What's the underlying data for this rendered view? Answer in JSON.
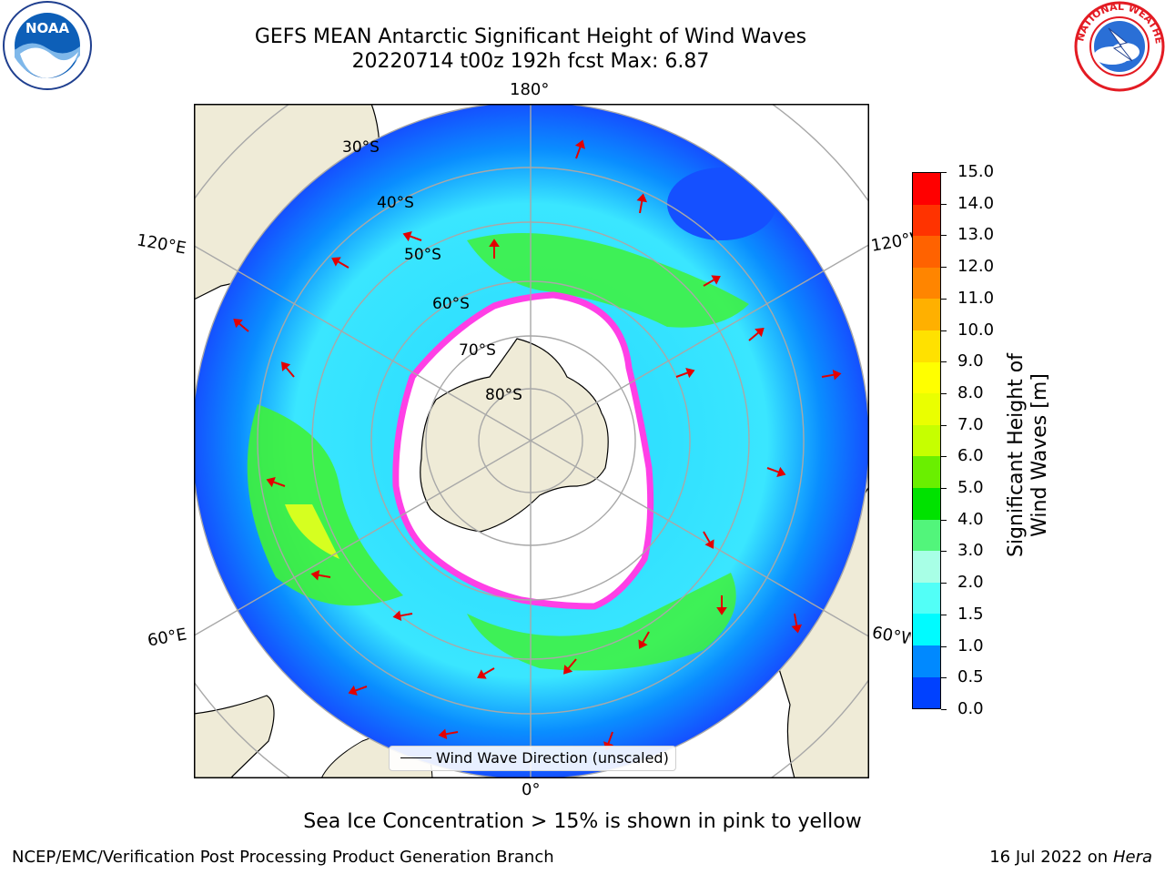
{
  "title": {
    "line1": "GEFS MEAN Antarctic Significant Height of Wind Waves",
    "line2": "20220714 t00z 192h fcst   Max: 6.87"
  },
  "logos": {
    "noaa": {
      "text": "NOAA",
      "ring_text": "NATIONAL OCEANIC AND ATMOSPHERIC ADMINISTRATION · U.S. DEPARTMENT OF COMMERCE",
      "icon": "noaa-logo"
    },
    "nws": {
      "ring_text": "NATIONAL WEATHER SERVICE",
      "icon": "nws-logo"
    }
  },
  "map": {
    "projection": "south-polar-stereographic",
    "longitude_labels": {
      "top": "180°",
      "bottom": "0°",
      "upper_left": "120°E",
      "upper_right": "120°W",
      "lower_left": "60°E",
      "lower_right": "60°W"
    },
    "latitude_labels": [
      "30°S",
      "40°S",
      "50°S",
      "60°S",
      "70°S",
      "80°S"
    ],
    "colors": {
      "land": "#efebd7",
      "ocean_low": "#1f5bff",
      "ocean_mid": "#25d9ff",
      "wave_high": "#29d13d",
      "ice_edge": "#ff3fe6",
      "arrows": "#e30000"
    }
  },
  "legend": {
    "label": "Wind Wave Direction (unscaled)"
  },
  "colorbar": {
    "label": "Significant Height of Wind Waves [m]",
    "ticks": [
      "15.0",
      "14.0",
      "13.0",
      "12.0",
      "11.0",
      "10.0",
      "9.0",
      "8.0",
      "7.0",
      "6.0",
      "5.0",
      "4.0",
      "3.0",
      "2.0",
      "1.5",
      "1.0",
      "0.5",
      "0.0"
    ],
    "colors": [
      "#ff0000",
      "#ff3300",
      "#ff6200",
      "#ff8500",
      "#ffb000",
      "#ffe100",
      "#ffff00",
      "#eaff00",
      "#c6ff00",
      "#6aef00",
      "#00e200",
      "#52f57b",
      "#a8ffe6",
      "#52fff7",
      "#00fbff",
      "#0089ff",
      "#0041ff"
    ]
  },
  "caption": "Sea Ice Concentration > 15% is shown in pink to yellow",
  "footer": {
    "left": "NCEP/EMC/Verification Post Processing Product Generation Branch",
    "date": "16 Jul 2022 on",
    "machine": "Hera"
  }
}
